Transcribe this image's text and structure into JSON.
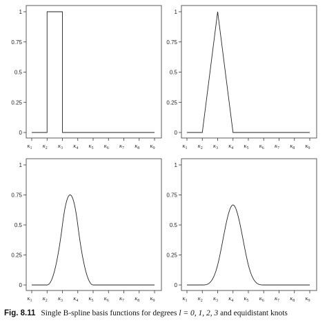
{
  "caption": {
    "label": "Fig. 8.11",
    "text": "Single B-spline basis functions for degrees",
    "math": "l = 0, 1, 2, 3",
    "suffix": "and equidistant knots"
  },
  "chart_data": [
    {
      "type": "line",
      "degree": 0,
      "xticks": [
        "κ1",
        "κ2",
        "κ3",
        "κ4",
        "κ5",
        "κ6",
        "κ7",
        "κ8",
        "κ9"
      ],
      "ylim": [
        0,
        1
      ],
      "yticks": [
        "0",
        "0.25",
        "0.5",
        "0.75",
        "1"
      ],
      "grid": false,
      "peak": {
        "x": "between κ2 and κ3",
        "y": 1
      }
    },
    {
      "type": "line",
      "degree": 1,
      "xticks": [
        "κ1",
        "κ2",
        "κ3",
        "κ4",
        "κ5",
        "κ6",
        "κ7",
        "κ8",
        "κ9"
      ],
      "ylim": [
        0,
        1
      ],
      "yticks": [
        "0",
        "0.25",
        "0.5",
        "0.75",
        "1"
      ],
      "grid": false,
      "peak": {
        "x": "κ3",
        "y": 1
      }
    },
    {
      "type": "line",
      "degree": 2,
      "xticks": [
        "κ1",
        "κ2",
        "κ3",
        "κ4",
        "κ5",
        "κ6",
        "κ7",
        "κ8",
        "κ9"
      ],
      "ylim": [
        0,
        1
      ],
      "yticks": [
        "0",
        "0.25",
        "0.5",
        "0.75",
        "1"
      ],
      "grid": false,
      "peak": {
        "x": "midpoint of κ3 and κ4",
        "y": 0.75
      }
    },
    {
      "type": "line",
      "degree": 3,
      "xticks": [
        "κ1",
        "κ2",
        "κ3",
        "κ4",
        "κ5",
        "κ6",
        "κ7",
        "κ8",
        "κ9"
      ],
      "ylim": [
        0,
        1
      ],
      "yticks": [
        "0",
        "0.25",
        "0.5",
        "0.75",
        "1"
      ],
      "grid": false,
      "peak": {
        "x": "κ4",
        "y": 0.6667
      }
    }
  ]
}
